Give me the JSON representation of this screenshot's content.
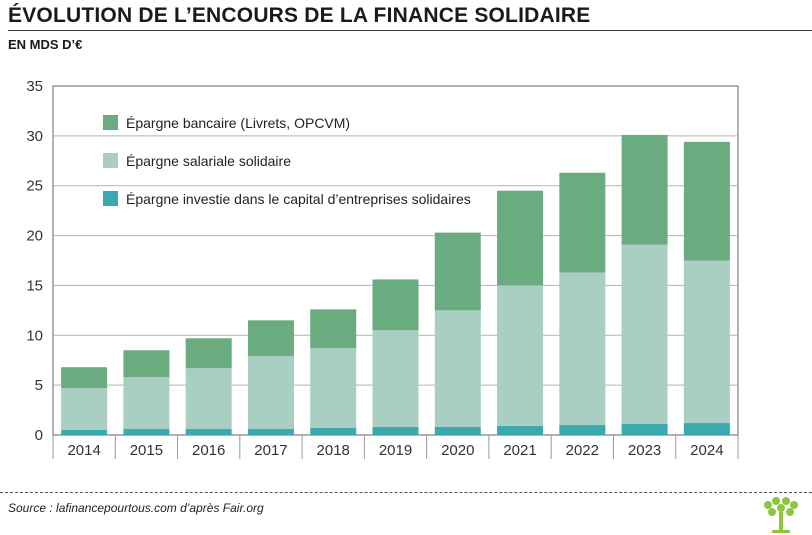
{
  "title": "ÉVOLUTION DE L’ENCOURS DE LA FINANCE SOLIDAIRE",
  "unit": "EN MDS D’€",
  "source": "Source : lafinancepourtous.com d’après Fair.org",
  "chart_data": {
    "type": "bar",
    "stacked": true,
    "categories": [
      "2014",
      "2015",
      "2016",
      "2017",
      "2018",
      "2019",
      "2020",
      "2021",
      "2022",
      "2023",
      "2024"
    ],
    "ylim": [
      0,
      35
    ],
    "yticks": [
      0,
      5,
      10,
      15,
      20,
      25,
      30,
      35
    ],
    "grid": true,
    "legend_position": "top-left",
    "series": [
      {
        "name": "Épargne investie dans le capital d’entreprises solidaires",
        "color": "#3aa9b0",
        "values": [
          0.5,
          0.6,
          0.6,
          0.6,
          0.7,
          0.8,
          0.8,
          0.9,
          1.0,
          1.1,
          1.2
        ]
      },
      {
        "name": "Épargne salariale solidaire",
        "color": "#a9cfc2",
        "values": [
          4.2,
          5.2,
          6.1,
          7.3,
          8.0,
          9.7,
          11.7,
          14.1,
          15.3,
          18.0,
          16.3
        ]
      },
      {
        "name": "Épargne bancaire (Livrets, OPCVM)",
        "color": "#6aac80",
        "values": [
          2.1,
          2.7,
          3.0,
          3.6,
          3.9,
          5.1,
          7.8,
          9.5,
          10.0,
          11.0,
          11.9
        ]
      }
    ]
  }
}
